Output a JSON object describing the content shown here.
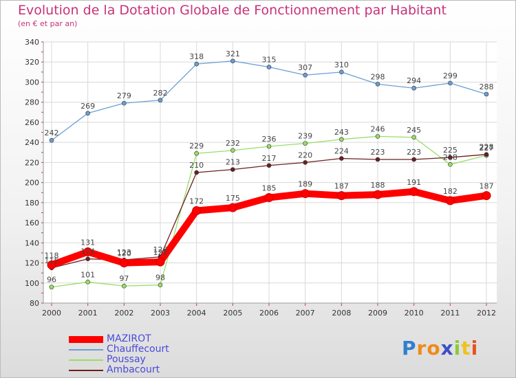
{
  "chart_data": {
    "type": "line",
    "title": "Evolution de la Dotation Globale de Fonctionnement par Habitant",
    "subtitle": "(en € et par an)",
    "xlabel": "",
    "ylabel": "",
    "categories": [
      "2000",
      "2001",
      "2002",
      "2003",
      "2004",
      "2005",
      "2006",
      "2007",
      "2008",
      "2009",
      "2010",
      "2011",
      "2012"
    ],
    "ylim": [
      80,
      340
    ],
    "yticks": [
      80,
      100,
      120,
      140,
      160,
      180,
      200,
      220,
      240,
      260,
      280,
      300,
      320,
      340
    ],
    "grid": true,
    "legend_position": "bottom-left",
    "series": [
      {
        "name": "MAZIROT",
        "color": "#ff0000",
        "values": [
          118,
          131,
          120,
          121,
          172,
          175,
          185,
          189,
          187,
          188,
          191,
          182,
          187
        ]
      },
      {
        "name": "Chauffecourt",
        "color": "#6a9fd4",
        "values": [
          242,
          269,
          279,
          282,
          318,
          321,
          315,
          307,
          310,
          298,
          294,
          299,
          288
        ]
      },
      {
        "name": "Poussay",
        "color": "#99dd66",
        "values": [
          96,
          101,
          97,
          98,
          229,
          232,
          236,
          239,
          243,
          246,
          245,
          218,
          227
        ]
      },
      {
        "name": "Ambacourt",
        "color": "#6b1f1f",
        "values": [
          115,
          124,
          123,
          126,
          210,
          213,
          217,
          220,
          224,
          223,
          223,
          225,
          228
        ]
      }
    ]
  },
  "logo": {
    "letters": [
      "P",
      "r",
      "o",
      "x",
      "i",
      "t",
      "i"
    ],
    "colors": [
      "#2f7fd0",
      "#f08a1c",
      "#f08a1c",
      "#3f4fc8",
      "#8acb3a",
      "#f0c21c",
      "#e8541c"
    ]
  }
}
